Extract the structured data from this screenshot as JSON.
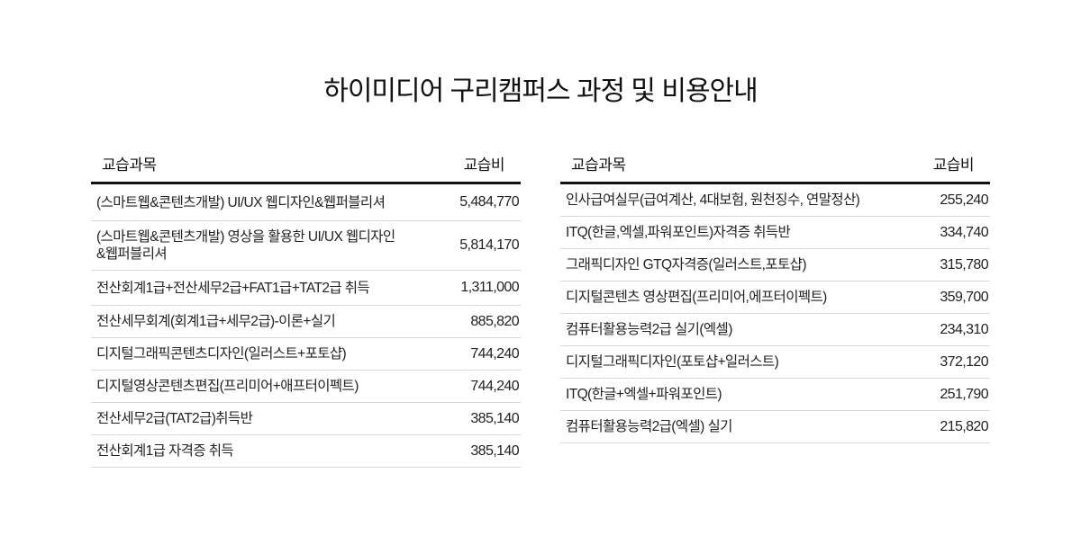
{
  "title": "하이미디어 구리캠퍼스 과정 및 비용안내",
  "tables": [
    {
      "header": {
        "course": "교습과목",
        "fee": "교습비"
      },
      "rows": [
        {
          "course": "(스마트웹&콘텐츠개발) UI/UX 웹디자인&웹퍼블리셔",
          "fee": "5,484,770"
        },
        {
          "course": "(스마트웹&콘텐츠개발) 영상을 활용한 UI/UX 웹디자인&웹퍼블리셔",
          "fee": "5,814,170"
        },
        {
          "course": "전산회계1급+전산세무2급+FAT1급+TAT2급 취득",
          "fee": "1,311,000"
        },
        {
          "course": "전산세무회계(회계1급+세무2급)-이론+실기",
          "fee": "885,820"
        },
        {
          "course": "디지털그래픽콘텐츠디자인(일러스트+포토샵)",
          "fee": "744,240"
        },
        {
          "course": "디지털영상콘텐츠편집(프리미어+애프터이펙트)",
          "fee": "744,240"
        },
        {
          "course": "전산세무2급(TAT2급)취득반",
          "fee": "385,140"
        },
        {
          "course": "전산회계1급 자격증 취득",
          "fee": "385,140"
        }
      ]
    },
    {
      "header": {
        "course": "교습과목",
        "fee": "교습비"
      },
      "rows": [
        {
          "course": "인사급여실무(급여계산, 4대보험, 원천징수, 연말정산)",
          "fee": "255,240"
        },
        {
          "course": "ITQ(한글,엑셀,파워포인트)자격증 취득반",
          "fee": "334,740"
        },
        {
          "course": "그래픽디자인 GTQ자격증(일러스트,포토샵)",
          "fee": "315,780"
        },
        {
          "course": "디지털콘텐츠 영상편집(프리미어,에프터이펙트)",
          "fee": "359,700"
        },
        {
          "course": "컴퓨터활용능력2급 실기(엑셀)",
          "fee": "234,310"
        },
        {
          "course": "디지털그래픽디자인(포토샵+일러스트)",
          "fee": "372,120"
        },
        {
          "course": "ITQ(한글+엑셀+파워포인트)",
          "fee": "251,790"
        },
        {
          "course": "컴퓨터활용능력2급(엑셀) 실기",
          "fee": "215,820"
        }
      ]
    }
  ]
}
